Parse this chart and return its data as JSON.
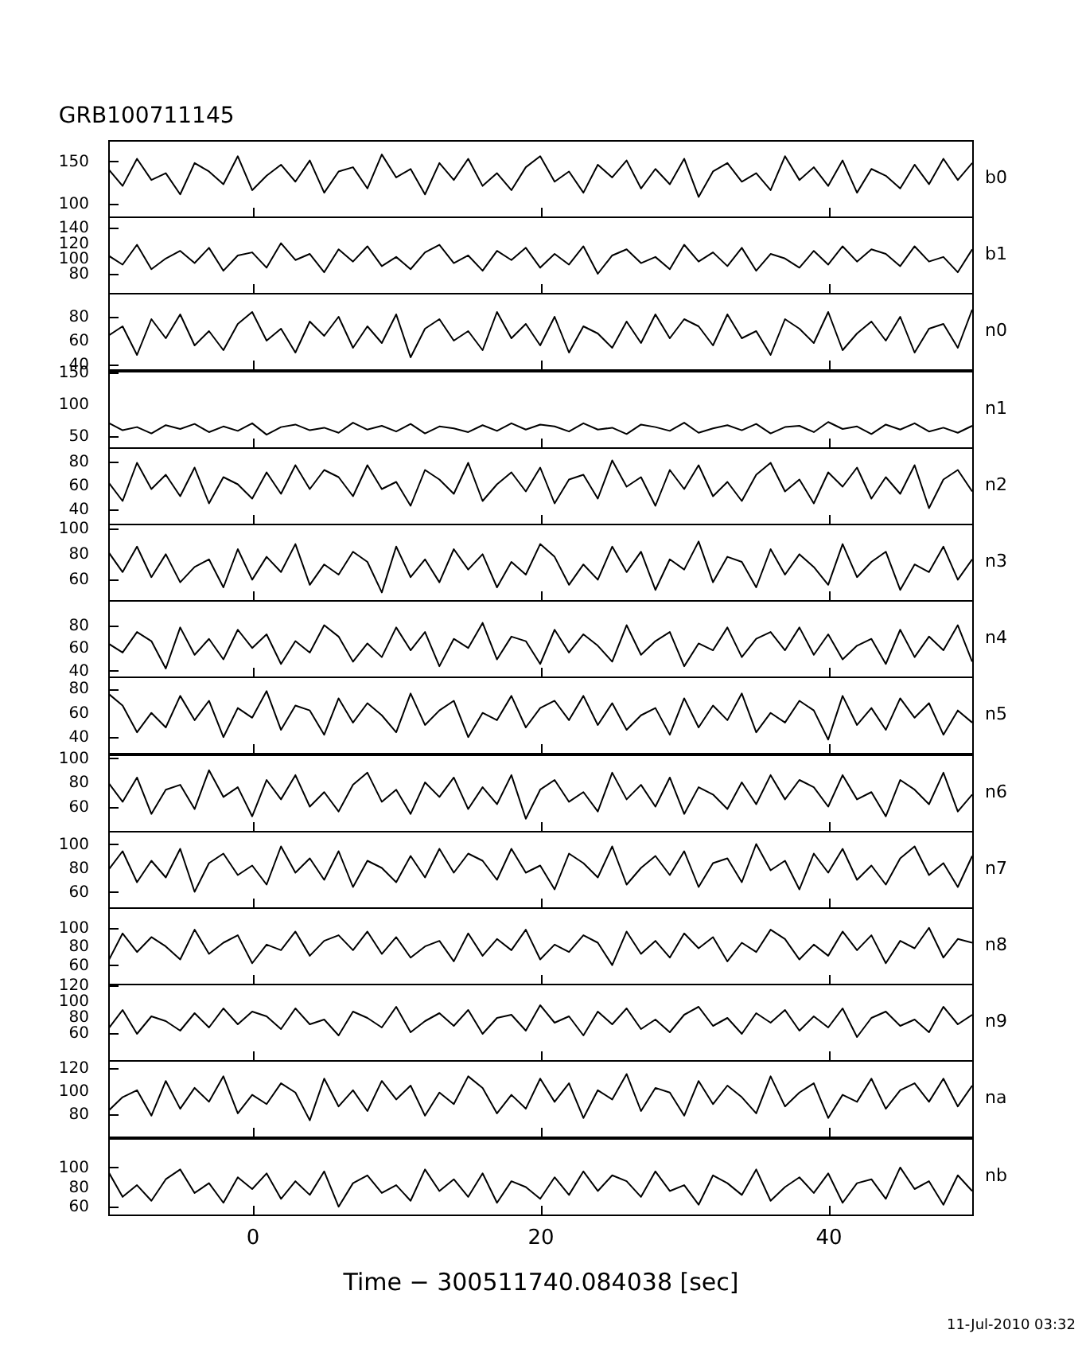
{
  "chart_data": [
    {
      "type": "line",
      "title": "GRB100711145",
      "tick_labels": "y",
      "grid": false,
      "xlim": [
        -10,
        50
      ],
      "xticks": [
        0,
        20,
        40
      ],
      "ylim": [
        85,
        175
      ],
      "yticks": [
        100,
        150
      ],
      "x": [
        -10,
        -9,
        -8,
        -7,
        -6,
        -5,
        -4,
        -3,
        -2,
        -1,
        0,
        1,
        2,
        3,
        4,
        5,
        6,
        7,
        8,
        9,
        10,
        11,
        12,
        13,
        14,
        15,
        16,
        17,
        18,
        19,
        20,
        21,
        22,
        23,
        24,
        25,
        26,
        27,
        28,
        29,
        30,
        31,
        32,
        33,
        34,
        35,
        36,
        37,
        38,
        39,
        40,
        41,
        42,
        43,
        44,
        45,
        46,
        47,
        48,
        49,
        50
      ],
      "series": [
        {
          "name": "b0",
          "color": "#000000",
          "values": [
            141,
            121,
            153,
            128,
            136,
            111,
            148,
            138,
            123,
            156,
            116,
            133,
            146,
            126,
            151,
            113,
            138,
            143,
            118,
            158,
            131,
            141,
            111,
            148,
            128,
            153,
            121,
            136,
            116,
            143,
            156,
            126,
            138,
            113,
            146,
            131,
            151,
            118,
            141,
            123,
            153,
            108,
            138,
            148,
            126,
            136,
            116,
            156,
            128,
            143,
            121,
            151,
            113,
            141,
            133,
            118,
            146,
            123,
            153,
            128,
            148
          ]
        }
      ]
    },
    {
      "type": "line",
      "tick_labels": "y",
      "grid": false,
      "xlim": [
        -10,
        50
      ],
      "xticks": [
        0,
        20,
        40
      ],
      "ylim": [
        55,
        155
      ],
      "yticks": [
        80,
        100,
        120,
        140
      ],
      "x": [
        -10,
        -9,
        -8,
        -7,
        -6,
        -5,
        -4,
        -3,
        -2,
        -1,
        0,
        1,
        2,
        3,
        4,
        5,
        6,
        7,
        8,
        9,
        10,
        11,
        12,
        13,
        14,
        15,
        16,
        17,
        18,
        19,
        20,
        21,
        22,
        23,
        24,
        25,
        26,
        27,
        28,
        29,
        30,
        31,
        32,
        33,
        34,
        35,
        36,
        37,
        38,
        39,
        40,
        41,
        42,
        43,
        44,
        45,
        46,
        47,
        48,
        49,
        50
      ],
      "series": [
        {
          "name": "b1",
          "color": "#000000",
          "values": [
            104,
            92,
            118,
            86,
            100,
            110,
            94,
            114,
            84,
            104,
            108,
            88,
            120,
            98,
            106,
            82,
            112,
            96,
            116,
            90,
            102,
            86,
            108,
            118,
            94,
            104,
            84,
            110,
            98,
            114,
            88,
            106,
            92,
            116,
            80,
            104,
            112,
            94,
            102,
            86,
            118,
            96,
            108,
            90,
            114,
            84,
            106,
            100,
            88,
            110,
            92,
            116,
            96,
            112,
            106,
            90,
            116,
            96,
            102,
            82,
            112
          ]
        }
      ]
    },
    {
      "type": "line",
      "tick_labels": "y",
      "grid": false,
      "xlim": [
        -10,
        50
      ],
      "xticks": [
        0,
        20,
        40
      ],
      "ylim": [
        36,
        100
      ],
      "yticks": [
        40,
        60,
        80
      ],
      "x": [
        -10,
        -9,
        -8,
        -7,
        -6,
        -5,
        -4,
        -3,
        -2,
        -1,
        0,
        1,
        2,
        3,
        4,
        5,
        6,
        7,
        8,
        9,
        10,
        11,
        12,
        13,
        14,
        15,
        16,
        17,
        18,
        19,
        20,
        21,
        22,
        23,
        24,
        25,
        26,
        27,
        28,
        29,
        30,
        31,
        32,
        33,
        34,
        35,
        36,
        37,
        38,
        39,
        40,
        41,
        42,
        43,
        44,
        45,
        46,
        47,
        48,
        49,
        50
      ],
      "series": [
        {
          "name": "n0",
          "color": "#000000",
          "values": [
            64,
            72,
            48,
            78,
            62,
            82,
            56,
            68,
            52,
            74,
            84,
            60,
            70,
            50,
            76,
            64,
            80,
            54,
            72,
            58,
            82,
            46,
            70,
            78,
            60,
            68,
            52,
            84,
            62,
            74,
            56,
            80,
            50,
            72,
            66,
            54,
            76,
            58,
            82,
            62,
            78,
            72,
            56,
            82,
            62,
            68,
            48,
            78,
            70,
            58,
            84,
            52,
            66,
            76,
            60,
            80,
            50,
            70,
            74,
            54,
            86
          ]
        }
      ]
    },
    {
      "type": "line",
      "tick_labels": "y",
      "grid": false,
      "xlim": [
        -10,
        50
      ],
      "xticks": [
        0,
        20,
        40
      ],
      "ylim": [
        32,
        153
      ],
      "yticks": [
        50,
        100,
        150
      ],
      "x": [
        -10,
        -9,
        -8,
        -7,
        -6,
        -5,
        -4,
        -3,
        -2,
        -1,
        0,
        1,
        2,
        3,
        4,
        5,
        6,
        7,
        8,
        9,
        10,
        11,
        12,
        13,
        14,
        15,
        16,
        17,
        18,
        19,
        20,
        21,
        22,
        23,
        24,
        25,
        26,
        27,
        28,
        29,
        30,
        31,
        32,
        33,
        34,
        35,
        36,
        37,
        38,
        39,
        40,
        41,
        42,
        43,
        44,
        45,
        46,
        47,
        48,
        49,
        50
      ],
      "series": [
        {
          "name": "n1",
          "color": "#000000",
          "values": [
            71,
            59,
            64,
            54,
            67,
            61,
            69,
            56,
            65,
            58,
            70,
            52,
            64,
            68,
            59,
            63,
            55,
            71,
            60,
            66,
            57,
            69,
            54,
            65,
            62,
            56,
            67,
            58,
            70,
            60,
            68,
            65,
            57,
            70,
            60,
            63,
            53,
            68,
            64,
            58,
            71,
            55,
            62,
            67,
            59,
            69,
            54,
            64,
            66,
            56,
            72,
            61,
            65,
            53,
            68,
            60,
            70,
            57,
            63,
            55,
            66
          ]
        }
      ]
    },
    {
      "type": "line",
      "tick_labels": "y",
      "grid": false,
      "xlim": [
        -10,
        50
      ],
      "xticks": [
        0,
        20,
        40
      ],
      "ylim": [
        28,
        92
      ],
      "yticks": [
        40,
        60,
        80
      ],
      "x": [
        -10,
        -9,
        -8,
        -7,
        -6,
        -5,
        -4,
        -3,
        -2,
        -1,
        0,
        1,
        2,
        3,
        4,
        5,
        6,
        7,
        8,
        9,
        10,
        11,
        12,
        13,
        14,
        15,
        16,
        17,
        18,
        19,
        20,
        21,
        22,
        23,
        24,
        25,
        26,
        27,
        28,
        29,
        30,
        31,
        32,
        33,
        34,
        35,
        36,
        37,
        38,
        39,
        40,
        41,
        42,
        43,
        44,
        45,
        46,
        47,
        48,
        49,
        50
      ],
      "series": [
        {
          "name": "n2",
          "color": "#000000",
          "values": [
            63,
            47,
            79,
            57,
            69,
            51,
            75,
            45,
            67,
            61,
            49,
            71,
            53,
            77,
            57,
            73,
            67,
            51,
            77,
            57,
            63,
            43,
            73,
            65,
            53,
            79,
            47,
            61,
            71,
            55,
            75,
            45,
            65,
            69,
            49,
            81,
            59,
            67,
            43,
            73,
            57,
            77,
            51,
            63,
            47,
            69,
            79,
            55,
            65,
            45,
            71,
            59,
            75,
            49,
            67,
            53,
            77,
            41,
            65,
            73,
            55
          ]
        }
      ]
    },
    {
      "type": "line",
      "tick_labels": "y",
      "grid": false,
      "xlim": [
        -10,
        50
      ],
      "xticks": [
        0,
        20,
        40
      ],
      "ylim": [
        44,
        104
      ],
      "yticks": [
        60,
        80,
        100
      ],
      "x": [
        -10,
        -9,
        -8,
        -7,
        -6,
        -5,
        -4,
        -3,
        -2,
        -1,
        0,
        1,
        2,
        3,
        4,
        5,
        6,
        7,
        8,
        9,
        10,
        11,
        12,
        13,
        14,
        15,
        16,
        17,
        18,
        19,
        20,
        21,
        22,
        23,
        24,
        25,
        26,
        27,
        28,
        29,
        30,
        31,
        32,
        33,
        34,
        35,
        36,
        37,
        38,
        39,
        40,
        41,
        42,
        43,
        44,
        45,
        46,
        47,
        48,
        49,
        50
      ],
      "series": [
        {
          "name": "n3",
          "color": "#000000",
          "values": [
            82,
            66,
            86,
            62,
            80,
            58,
            70,
            76,
            54,
            84,
            60,
            78,
            66,
            88,
            56,
            72,
            64,
            82,
            74,
            50,
            86,
            62,
            76,
            58,
            84,
            68,
            80,
            54,
            74,
            64,
            88,
            78,
            56,
            72,
            60,
            86,
            66,
            82,
            52,
            76,
            68,
            90,
            58,
            78,
            74,
            54,
            84,
            64,
            80,
            70,
            56,
            88,
            62,
            74,
            82,
            52,
            72,
            66,
            86,
            60,
            76
          ]
        }
      ]
    },
    {
      "type": "line",
      "tick_labels": "y",
      "grid": false,
      "xlim": [
        -10,
        50
      ],
      "xticks": [
        0,
        20,
        40
      ],
      "ylim": [
        35,
        102
      ],
      "yticks": [
        40,
        60,
        80
      ],
      "x": [
        -10,
        -9,
        -8,
        -7,
        -6,
        -5,
        -4,
        -3,
        -2,
        -1,
        0,
        1,
        2,
        3,
        4,
        5,
        6,
        7,
        8,
        9,
        10,
        11,
        12,
        13,
        14,
        15,
        16,
        17,
        18,
        19,
        20,
        21,
        22,
        23,
        24,
        25,
        26,
        27,
        28,
        29,
        30,
        31,
        32,
        33,
        34,
        35,
        36,
        37,
        38,
        39,
        40,
        41,
        42,
        43,
        44,
        45,
        46,
        47,
        48,
        49,
        50
      ],
      "series": [
        {
          "name": "n4",
          "color": "#000000",
          "values": [
            64,
            56,
            74,
            66,
            42,
            78,
            54,
            68,
            50,
            76,
            60,
            72,
            46,
            66,
            56,
            80,
            70,
            48,
            64,
            52,
            78,
            58,
            74,
            44,
            68,
            60,
            82,
            50,
            70,
            66,
            46,
            76,
            56,
            72,
            62,
            48,
            80,
            54,
            66,
            74,
            44,
            64,
            58,
            78,
            52,
            68,
            74,
            58,
            78,
            54,
            72,
            50,
            62,
            68,
            46,
            76,
            52,
            70,
            58,
            80,
            48
          ]
        }
      ]
    },
    {
      "type": "line",
      "tick_labels": "y",
      "grid": false,
      "xlim": [
        -10,
        50
      ],
      "xticks": [
        0,
        20,
        40
      ],
      "ylim": [
        27,
        90
      ],
      "yticks": [
        40,
        60,
        80
      ],
      "x": [
        -10,
        -9,
        -8,
        -7,
        -6,
        -5,
        -4,
        -3,
        -2,
        -1,
        0,
        1,
        2,
        3,
        4,
        5,
        6,
        7,
        8,
        9,
        10,
        11,
        12,
        13,
        14,
        15,
        16,
        17,
        18,
        19,
        20,
        21,
        22,
        23,
        24,
        25,
        26,
        27,
        28,
        29,
        30,
        31,
        32,
        33,
        34,
        35,
        36,
        37,
        38,
        39,
        40,
        41,
        42,
        43,
        44,
        45,
        46,
        47,
        48,
        49,
        50
      ],
      "series": [
        {
          "name": "n5",
          "color": "#000000",
          "values": [
            76,
            66,
            44,
            60,
            48,
            74,
            54,
            70,
            40,
            64,
            56,
            78,
            46,
            66,
            62,
            42,
            72,
            52,
            68,
            58,
            44,
            76,
            50,
            62,
            70,
            40,
            60,
            54,
            74,
            48,
            64,
            70,
            54,
            74,
            50,
            68,
            46,
            58,
            64,
            42,
            72,
            48,
            66,
            54,
            76,
            44,
            60,
            52,
            70,
            62,
            38,
            74,
            50,
            64,
            46,
            72,
            56,
            68,
            42,
            62,
            52
          ]
        }
      ]
    },
    {
      "type": "line",
      "tick_labels": "y",
      "grid": false,
      "xlim": [
        -10,
        50
      ],
      "xticks": [
        0,
        20,
        40
      ],
      "ylim": [
        40,
        103
      ],
      "yticks": [
        60,
        80,
        100
      ],
      "x": [
        -10,
        -9,
        -8,
        -7,
        -6,
        -5,
        -4,
        -3,
        -2,
        -1,
        0,
        1,
        2,
        3,
        4,
        5,
        6,
        7,
        8,
        9,
        10,
        11,
        12,
        13,
        14,
        15,
        16,
        17,
        18,
        19,
        20,
        21,
        22,
        23,
        24,
        25,
        26,
        27,
        28,
        29,
        30,
        31,
        32,
        33,
        34,
        35,
        36,
        37,
        38,
        39,
        40,
        41,
        42,
        43,
        44,
        45,
        46,
        47,
        48,
        49,
        50
      ],
      "series": [
        {
          "name": "n6",
          "color": "#000000",
          "values": [
            80,
            64,
            84,
            54,
            74,
            78,
            58,
            90,
            68,
            76,
            52,
            82,
            66,
            86,
            60,
            72,
            56,
            78,
            88,
            64,
            74,
            54,
            80,
            68,
            84,
            58,
            76,
            62,
            86,
            50,
            74,
            82,
            64,
            72,
            56,
            88,
            66,
            78,
            60,
            84,
            54,
            76,
            70,
            58,
            80,
            62,
            86,
            66,
            82,
            76,
            60,
            86,
            66,
            72,
            52,
            82,
            74,
            62,
            88,
            56,
            70
          ]
        }
      ]
    },
    {
      "type": "line",
      "tick_labels": "y",
      "grid": false,
      "xlim": [
        -10,
        50
      ],
      "xticks": [
        0,
        20,
        40
      ],
      "ylim": [
        47,
        111
      ],
      "yticks": [
        60,
        80,
        100
      ],
      "x": [
        -10,
        -9,
        -8,
        -7,
        -6,
        -5,
        -4,
        -3,
        -2,
        -1,
        0,
        1,
        2,
        3,
        4,
        5,
        6,
        7,
        8,
        9,
        10,
        11,
        12,
        13,
        14,
        15,
        16,
        17,
        18,
        19,
        20,
        21,
        22,
        23,
        24,
        25,
        26,
        27,
        28,
        29,
        30,
        31,
        32,
        33,
        34,
        35,
        36,
        37,
        38,
        39,
        40,
        41,
        42,
        43,
        44,
        45,
        46,
        47,
        48,
        49,
        50
      ],
      "series": [
        {
          "name": "n7",
          "color": "#000000",
          "values": [
            78,
            94,
            68,
            86,
            72,
            96,
            60,
            84,
            92,
            74,
            82,
            66,
            98,
            76,
            88,
            70,
            94,
            64,
            86,
            80,
            68,
            90,
            72,
            96,
            76,
            92,
            86,
            70,
            96,
            76,
            82,
            62,
            92,
            84,
            72,
            98,
            66,
            80,
            90,
            74,
            94,
            64,
            84,
            88,
            68,
            100,
            78,
            86,
            62,
            92,
            76,
            96,
            70,
            82,
            66,
            88,
            98,
            74,
            84,
            64,
            90
          ]
        }
      ]
    },
    {
      "type": "line",
      "tick_labels": "y",
      "grid": false,
      "xlim": [
        -10,
        50
      ],
      "xticks": [
        0,
        20,
        40
      ],
      "ylim": [
        40,
        122
      ],
      "yticks": [
        60,
        80,
        100
      ],
      "x": [
        -10,
        -9,
        -8,
        -7,
        -6,
        -5,
        -4,
        -3,
        -2,
        -1,
        0,
        1,
        2,
        3,
        4,
        5,
        6,
        7,
        8,
        9,
        10,
        11,
        12,
        13,
        14,
        15,
        16,
        17,
        18,
        19,
        20,
        21,
        22,
        23,
        24,
        25,
        26,
        27,
        28,
        29,
        30,
        31,
        32,
        33,
        34,
        35,
        36,
        37,
        38,
        39,
        40,
        41,
        42,
        43,
        44,
        45,
        46,
        47,
        48,
        49,
        50
      ],
      "series": [
        {
          "name": "n8",
          "color": "#000000",
          "values": [
            64,
            94,
            74,
            90,
            80,
            66,
            98,
            72,
            84,
            92,
            62,
            82,
            76,
            96,
            70,
            86,
            92,
            76,
            96,
            72,
            90,
            68,
            80,
            86,
            64,
            94,
            70,
            88,
            76,
            98,
            66,
            82,
            74,
            92,
            84,
            60,
            96,
            72,
            86,
            68,
            94,
            78,
            90,
            64,
            84,
            74,
            98,
            88,
            66,
            82,
            70,
            96,
            76,
            92,
            62,
            86,
            78,
            100,
            68,
            88,
            84
          ]
        }
      ]
    },
    {
      "type": "line",
      "tick_labels": "y",
      "grid": false,
      "xlim": [
        -10,
        50
      ],
      "xticks": [
        0,
        20,
        40
      ],
      "ylim": [
        26,
        122
      ],
      "yticks": [
        60,
        80,
        100,
        120
      ],
      "x": [
        -10,
        -9,
        -8,
        -7,
        -6,
        -5,
        -4,
        -3,
        -2,
        -1,
        0,
        1,
        2,
        3,
        4,
        5,
        6,
        7,
        8,
        9,
        10,
        11,
        12,
        13,
        14,
        15,
        16,
        17,
        18,
        19,
        20,
        21,
        22,
        23,
        24,
        25,
        26,
        27,
        28,
        29,
        30,
        31,
        32,
        33,
        34,
        35,
        36,
        37,
        38,
        39,
        40,
        41,
        42,
        43,
        44,
        45,
        46,
        47,
        48,
        49,
        50
      ],
      "series": [
        {
          "name": "n9",
          "color": "#000000",
          "values": [
            65,
            89,
            59,
            81,
            75,
            63,
            85,
            67,
            91,
            71,
            87,
            81,
            65,
            91,
            71,
            77,
            57,
            87,
            79,
            67,
            93,
            61,
            75,
            85,
            69,
            89,
            59,
            79,
            83,
            63,
            95,
            73,
            81,
            57,
            87,
            71,
            91,
            65,
            77,
            61,
            83,
            93,
            69,
            79,
            59,
            85,
            73,
            89,
            63,
            81,
            67,
            91,
            55,
            79,
            87,
            69,
            77,
            61,
            93,
            71,
            83
          ]
        }
      ]
    },
    {
      "type": "line",
      "tick_labels": "y",
      "grid": false,
      "xlim": [
        -10,
        50
      ],
      "xticks": [
        0,
        20,
        40
      ],
      "ylim": [
        61,
        127
      ],
      "yticks": [
        80,
        100,
        120
      ],
      "x": [
        -10,
        -9,
        -8,
        -7,
        -6,
        -5,
        -4,
        -3,
        -2,
        -1,
        0,
        1,
        2,
        3,
        4,
        5,
        6,
        7,
        8,
        9,
        10,
        11,
        12,
        13,
        14,
        15,
        16,
        17,
        18,
        19,
        20,
        21,
        22,
        23,
        24,
        25,
        26,
        27,
        28,
        29,
        30,
        31,
        32,
        33,
        34,
        35,
        36,
        37,
        38,
        39,
        40,
        41,
        42,
        43,
        44,
        45,
        46,
        47,
        48,
        49,
        50
      ],
      "series": [
        {
          "name": "na",
          "color": "#000000",
          "values": [
            83,
            95,
            101,
            79,
            109,
            85,
            103,
            91,
            113,
            81,
            97,
            89,
            107,
            99,
            75,
            111,
            87,
            101,
            83,
            109,
            93,
            105,
            79,
            99,
            89,
            113,
            103,
            81,
            97,
            85,
            111,
            91,
            107,
            77,
            101,
            93,
            115,
            83,
            103,
            99,
            79,
            109,
            89,
            105,
            95,
            81,
            113,
            87,
            99,
            107,
            77,
            97,
            91,
            111,
            85,
            101,
            107,
            91,
            111,
            87,
            105
          ]
        }
      ]
    },
    {
      "type": "line",
      "grid": false,
      "xlabel": "Time − 300511740.084038 [sec]",
      "annotations": [
        "11-Jul-2010 03:32"
      ],
      "xlim": [
        -10,
        50
      ],
      "xticks": [
        0,
        20,
        40
      ],
      "ylim": [
        52,
        130
      ],
      "yticks": [
        60,
        80,
        100
      ],
      "x": [
        -10,
        -9,
        -8,
        -7,
        -6,
        -5,
        -4,
        -3,
        -2,
        -1,
        0,
        1,
        2,
        3,
        4,
        5,
        6,
        7,
        8,
        9,
        10,
        11,
        12,
        13,
        14,
        15,
        16,
        17,
        18,
        19,
        20,
        21,
        22,
        23,
        24,
        25,
        26,
        27,
        28,
        29,
        30,
        31,
        32,
        33,
        34,
        35,
        36,
        37,
        38,
        39,
        40,
        41,
        42,
        43,
        44,
        45,
        46,
        47,
        48,
        49,
        50
      ],
      "series": [
        {
          "name": "nb",
          "color": "#000000",
          "values": [
            96,
            70,
            82,
            66,
            88,
            98,
            74,
            84,
            64,
            90,
            78,
            94,
            68,
            86,
            72,
            96,
            60,
            84,
            92,
            74,
            82,
            66,
            98,
            76,
            88,
            70,
            94,
            64,
            86,
            80,
            68,
            90,
            72,
            96,
            76,
            92,
            86,
            70,
            96,
            76,
            82,
            62,
            92,
            84,
            72,
            98,
            66,
            80,
            90,
            74,
            94,
            64,
            84,
            88,
            68,
            100,
            78,
            86,
            62,
            92,
            76
          ]
        }
      ]
    }
  ]
}
